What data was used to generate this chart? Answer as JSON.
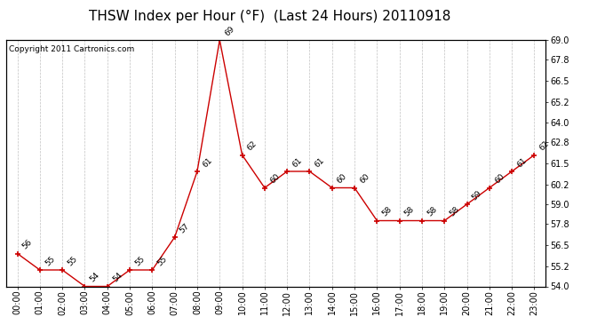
{
  "title": "THSW Index per Hour (°F)  (Last 24 Hours) 20110918",
  "copyright": "Copyright 2011 Cartronics.com",
  "x_labels": [
    "00:00",
    "01:00",
    "02:00",
    "03:00",
    "04:00",
    "05:00",
    "06:00",
    "07:00",
    "08:00",
    "09:00",
    "10:00",
    "11:00",
    "12:00",
    "13:00",
    "14:00",
    "15:00",
    "16:00",
    "17:00",
    "18:00",
    "19:00",
    "20:00",
    "21:00",
    "22:00",
    "23:00"
  ],
  "y_values": [
    56,
    55,
    55,
    54,
    54,
    55,
    55,
    57,
    61,
    69,
    62,
    60,
    61,
    61,
    60,
    60,
    58,
    58,
    58,
    58,
    59,
    60,
    61,
    62
  ],
  "y_tick_vals": [
    54.0,
    55.2,
    56.5,
    57.8,
    59.0,
    60.2,
    61.5,
    62.8,
    64.0,
    65.2,
    66.5,
    67.8,
    69.0
  ],
  "y_tick_labels": [
    "54.0",
    "55.2",
    "56.5",
    "57.8",
    "59.0",
    "60.2",
    "61.5",
    "62.8",
    "64.0",
    "65.2",
    "66.5",
    "67.8",
    "69.0"
  ],
  "ylim_min": 54.0,
  "ylim_max": 69.0,
  "line_color": "#cc0000",
  "marker_color": "#cc0000",
  "bg_color": "#ffffff",
  "grid_color": "#bbbbbb",
  "title_fontsize": 11,
  "copyright_fontsize": 6.5,
  "label_fontsize": 6.5,
  "tick_fontsize": 7
}
